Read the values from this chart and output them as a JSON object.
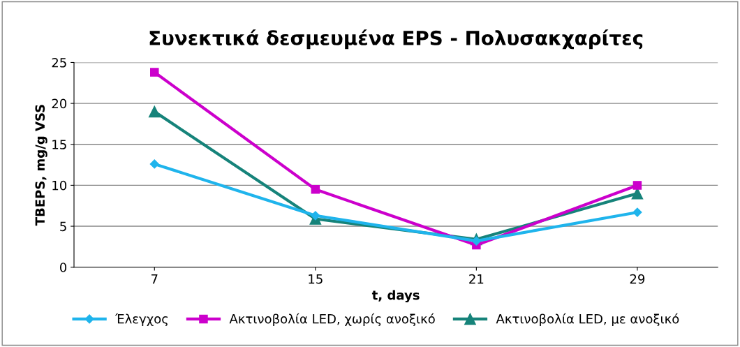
{
  "chart_data": {
    "type": "line",
    "title": "Συνεκτικά δεσμευμένα EPS - Πολυσακχαρίτες",
    "xlabel": "t, days",
    "ylabel": "TBEPS, mg/g VSS",
    "categories": [
      "7",
      "15",
      "21",
      "29"
    ],
    "series": [
      {
        "name": "Έλεγχος",
        "color": "#1fb4ec",
        "marker": "diamond",
        "values": [
          12.6,
          6.3,
          3.2,
          6.7
        ]
      },
      {
        "name": "Ακτινοβολία LED, χωρίς ανοξικό",
        "color": "#cc00cc",
        "marker": "square",
        "values": [
          23.8,
          9.5,
          2.7,
          10.0
        ]
      },
      {
        "name": "Ακτινοβολία LED, με ανοξικό",
        "color": "#16837a",
        "marker": "triangle",
        "values": [
          19.0,
          5.9,
          3.4,
          9.0
        ]
      }
    ],
    "ylim": [
      0,
      25
    ],
    "yticks": [
      0,
      5,
      10,
      15,
      20,
      25
    ],
    "grid": "y",
    "legend": "bottom",
    "line_style": "solid"
  }
}
